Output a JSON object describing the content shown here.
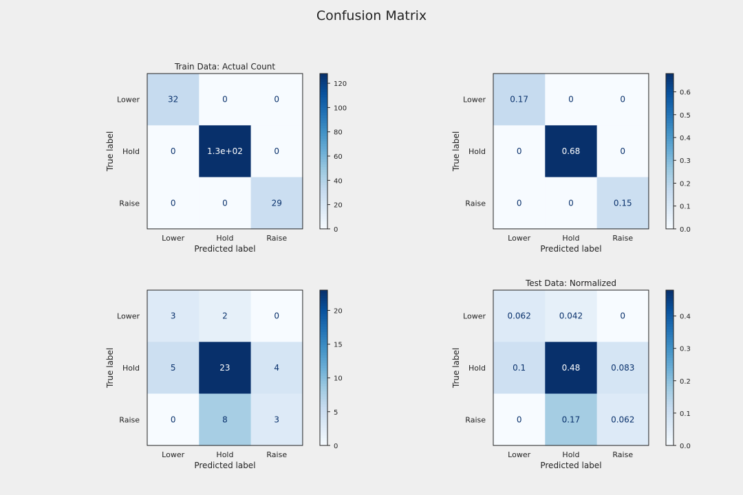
{
  "figure": {
    "title": "Confusion Matrix"
  },
  "chart_data": [
    {
      "type": "heatmap",
      "title": "Train Data: Actual Count",
      "xlabel": "Predicted label",
      "ylabel": "True label",
      "x_categories": [
        "Lower",
        "Hold",
        "Raise"
      ],
      "y_categories": [
        "Lower",
        "Hold",
        "Raise"
      ],
      "values": [
        [
          32,
          0,
          0
        ],
        [
          0,
          128,
          0
        ],
        [
          0,
          0,
          29
        ]
      ],
      "cell_labels": [
        [
          "32",
          "0",
          "0"
        ],
        [
          "0",
          "1.3e+02",
          "0"
        ],
        [
          "0",
          "0",
          "29"
        ]
      ],
      "colormap": "Blues",
      "colorbar": {
        "min": 0,
        "max": 128,
        "ticks": [
          "0",
          "20",
          "40",
          "60",
          "80",
          "100",
          "120"
        ]
      }
    },
    {
      "type": "heatmap",
      "title": "",
      "xlabel": "Predicted label",
      "ylabel": "True label",
      "x_categories": [
        "Lower",
        "Hold",
        "Raise"
      ],
      "y_categories": [
        "Lower",
        "Hold",
        "Raise"
      ],
      "values": [
        [
          0.17,
          0,
          0
        ],
        [
          0,
          0.68,
          0
        ],
        [
          0,
          0,
          0.15
        ]
      ],
      "cell_labels": [
        [
          "0.17",
          "0",
          "0"
        ],
        [
          "0",
          "0.68",
          "0"
        ],
        [
          "0",
          "0",
          "0.15"
        ]
      ],
      "colormap": "Blues",
      "colorbar": {
        "min": 0,
        "max": 0.68,
        "ticks": [
          "0.0",
          "0.1",
          "0.2",
          "0.3",
          "0.4",
          "0.5",
          "0.6"
        ]
      }
    },
    {
      "type": "heatmap",
      "title": "",
      "xlabel": "Predicted label",
      "ylabel": "True label",
      "x_categories": [
        "Lower",
        "Hold",
        "Raise"
      ],
      "y_categories": [
        "Lower",
        "Hold",
        "Raise"
      ],
      "values": [
        [
          3,
          2,
          0
        ],
        [
          5,
          23,
          4
        ],
        [
          0,
          8,
          3
        ]
      ],
      "cell_labels": [
        [
          "3",
          "2",
          "0"
        ],
        [
          "5",
          "23",
          "4"
        ],
        [
          "0",
          "8",
          "3"
        ]
      ],
      "colormap": "Blues",
      "colorbar": {
        "min": 0,
        "max": 23,
        "ticks": [
          "0",
          "5",
          "10",
          "15",
          "20"
        ]
      }
    },
    {
      "type": "heatmap",
      "title": "Test Data: Normalized",
      "xlabel": "Predicted label",
      "ylabel": "True label",
      "x_categories": [
        "Lower",
        "Hold",
        "Raise"
      ],
      "y_categories": [
        "Lower",
        "Hold",
        "Raise"
      ],
      "values": [
        [
          0.062,
          0.042,
          0
        ],
        [
          0.1,
          0.48,
          0.083
        ],
        [
          0,
          0.17,
          0.062
        ]
      ],
      "cell_labels": [
        [
          "0.062",
          "0.042",
          "0"
        ],
        [
          "0.1",
          "0.48",
          "0.083"
        ],
        [
          "0",
          "0.17",
          "0.062"
        ]
      ],
      "colormap": "Blues",
      "colorbar": {
        "min": 0,
        "max": 0.48,
        "ticks": [
          "0.0",
          "0.1",
          "0.2",
          "0.3",
          "0.4"
        ]
      }
    }
  ]
}
